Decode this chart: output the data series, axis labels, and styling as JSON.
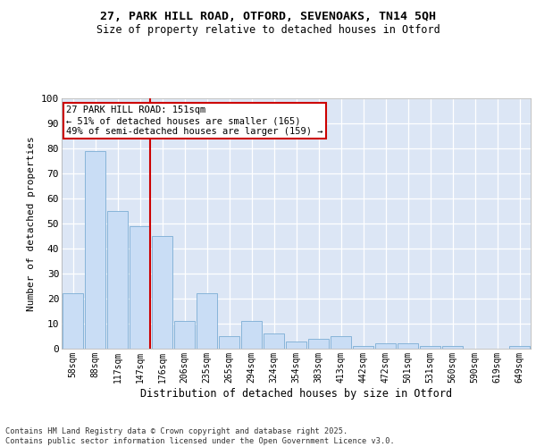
{
  "title_line1": "27, PARK HILL ROAD, OTFORD, SEVENOAKS, TN14 5QH",
  "title_line2": "Size of property relative to detached houses in Otford",
  "xlabel": "Distribution of detached houses by size in Otford",
  "ylabel": "Number of detached properties",
  "bar_labels": [
    "58sqm",
    "88sqm",
    "117sqm",
    "147sqm",
    "176sqm",
    "206sqm",
    "235sqm",
    "265sqm",
    "294sqm",
    "324sqm",
    "354sqm",
    "383sqm",
    "413sqm",
    "442sqm",
    "472sqm",
    "501sqm",
    "531sqm",
    "560sqm",
    "590sqm",
    "619sqm",
    "649sqm"
  ],
  "bar_values": [
    22,
    79,
    55,
    49,
    45,
    11,
    22,
    5,
    11,
    6,
    3,
    4,
    5,
    1,
    2,
    2,
    1,
    1,
    0,
    0,
    1
  ],
  "bar_color": "#c9ddf5",
  "bar_edge_color": "#7badd4",
  "fig_bg_color": "#ffffff",
  "plot_bg_color": "#dce6f5",
  "vline_color": "#cc0000",
  "vline_x_idx": 3,
  "annotation_text": "27 PARK HILL ROAD: 151sqm\n← 51% of detached houses are smaller (165)\n49% of semi-detached houses are larger (159) →",
  "annotation_box_facecolor": "#ffffff",
  "annotation_box_edgecolor": "#cc0000",
  "ylim": [
    0,
    100
  ],
  "yticks": [
    0,
    10,
    20,
    30,
    40,
    50,
    60,
    70,
    80,
    90,
    100
  ],
  "footnote": "Contains HM Land Registry data © Crown copyright and database right 2025.\nContains public sector information licensed under the Open Government Licence v3.0.",
  "figsize": [
    6.0,
    5.0
  ],
  "dpi": 100
}
